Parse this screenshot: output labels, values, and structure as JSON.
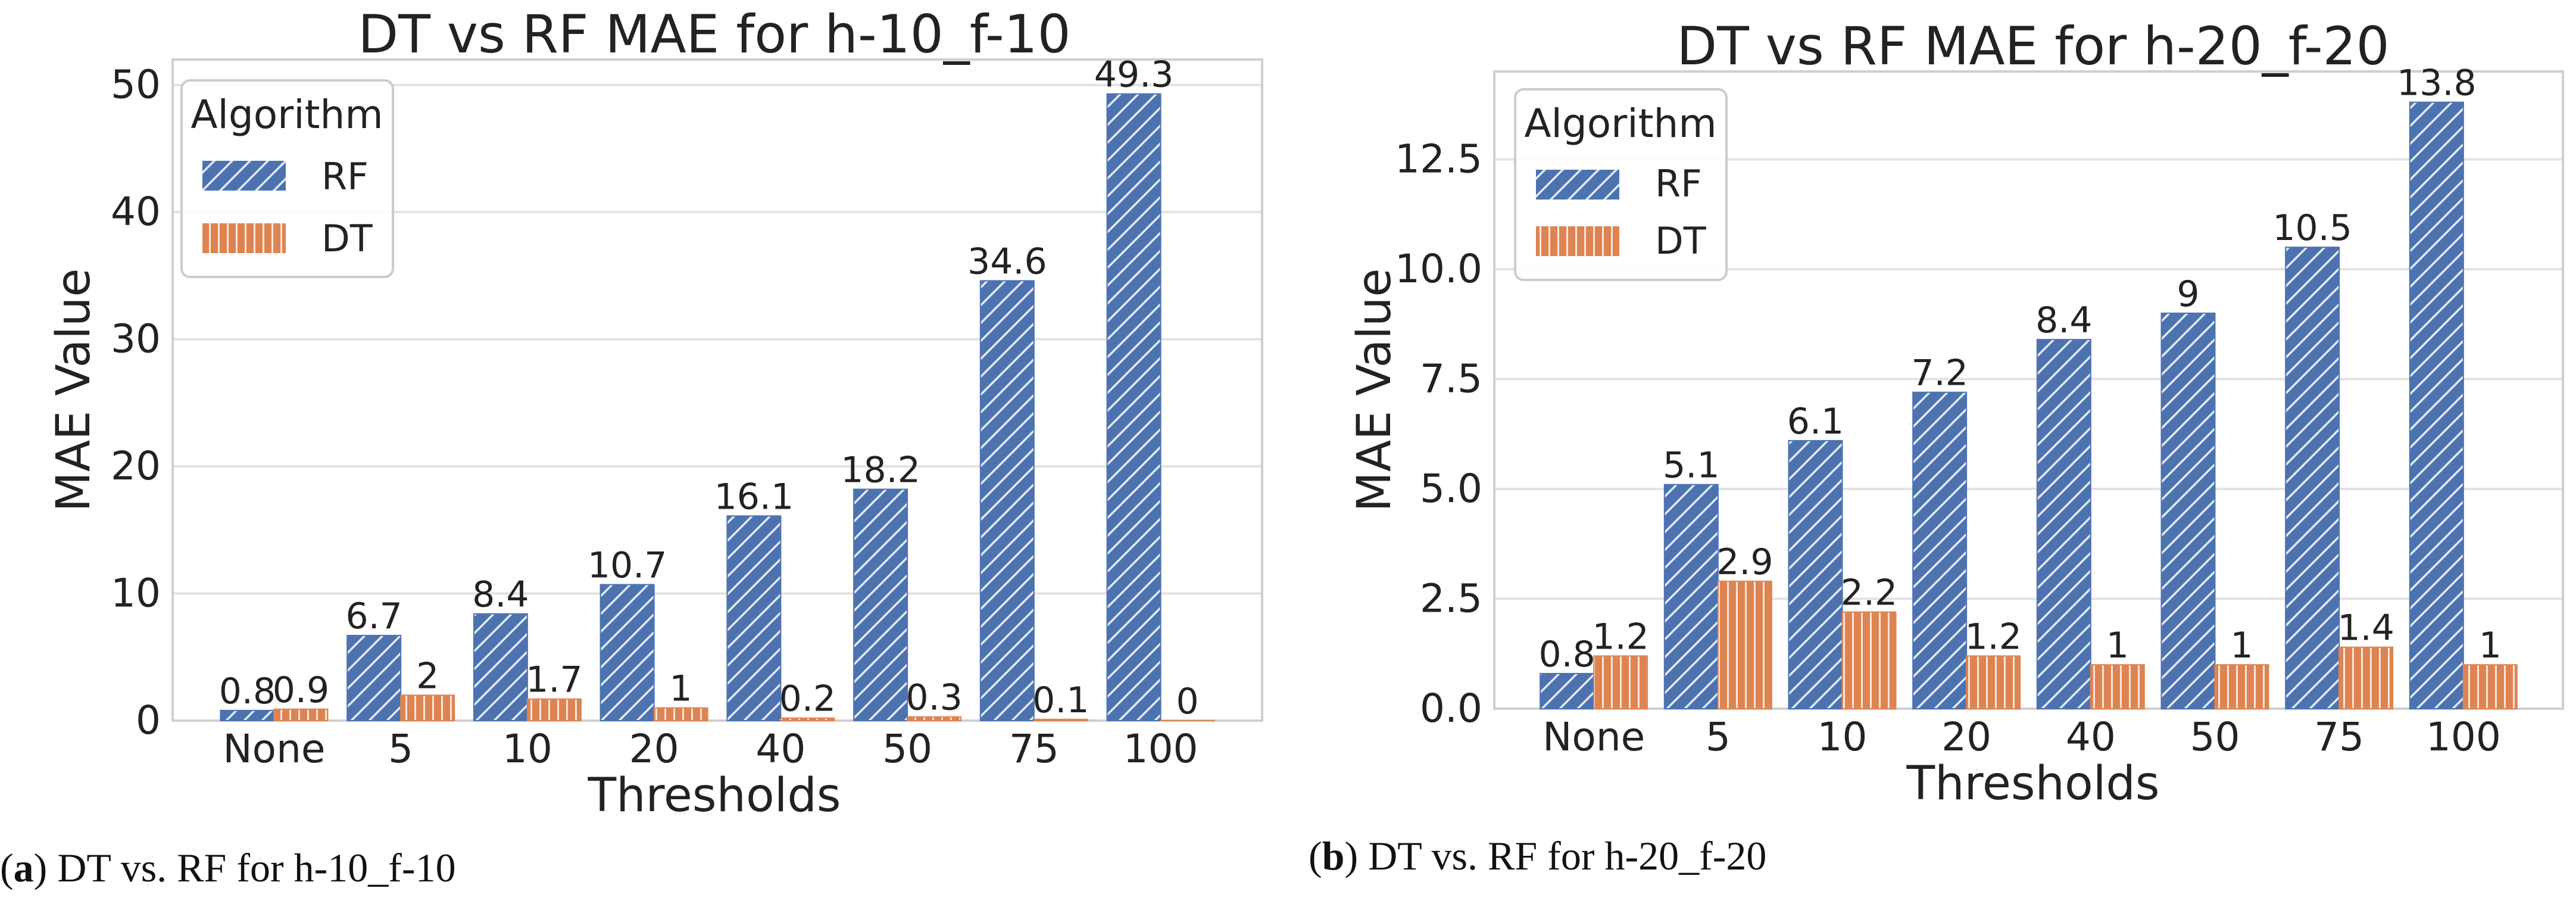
{
  "captions": [
    {
      "letter": "a",
      "text": ") DT vs. RF for h-10_f-10"
    },
    {
      "letter": "b",
      "text": ") DT vs. RF for h-20_f-20"
    }
  ],
  "colors": {
    "RF": "#4c72b0",
    "DT": "#dd8452",
    "grid": "#e2e2e2",
    "frame": "#cfcfcf"
  },
  "chart_data": [
    {
      "type": "bar",
      "title": "DT vs RF MAE for h-10_f-10",
      "xlabel": "Thresholds",
      "ylabel": "MAE Value",
      "categories": [
        "None",
        "5",
        "10",
        "20",
        "40",
        "50",
        "75",
        "100"
      ],
      "series": [
        {
          "name": "RF",
          "values": [
            0.8,
            6.7,
            8.4,
            10.7,
            16.1,
            18.2,
            34.6,
            49.3
          ],
          "labels": [
            "0.8",
            "6.7",
            "8.4",
            "10.7",
            "16.1",
            "18.2",
            "34.6",
            "49.3"
          ]
        },
        {
          "name": "DT",
          "values": [
            0.9,
            2,
            1.7,
            1,
            0.2,
            0.3,
            0.1,
            0
          ],
          "labels": [
            "0.9",
            "2",
            "1.7",
            "1",
            "0.2",
            "0.3",
            "0.1",
            "0"
          ]
        }
      ],
      "ylim": [
        0,
        52
      ],
      "yticks": [
        0,
        10,
        20,
        30,
        40,
        50
      ],
      "ytick_labels": [
        "0",
        "10",
        "20",
        "30",
        "40",
        "50"
      ],
      "legend": {
        "title": "Algorithm",
        "position": "upper-left",
        "entries": [
          "RF",
          "DT"
        ]
      },
      "grid": true
    },
    {
      "type": "bar",
      "title": "DT vs RF MAE for h-20_f-20",
      "xlabel": "Thresholds",
      "ylabel": "MAE Value",
      "categories": [
        "None",
        "5",
        "10",
        "20",
        "40",
        "50",
        "75",
        "100"
      ],
      "series": [
        {
          "name": "RF",
          "values": [
            0.8,
            5.1,
            6.1,
            7.2,
            8.4,
            9,
            10.5,
            13.8
          ],
          "labels": [
            "0.8",
            "5.1",
            "6.1",
            "7.2",
            "8.4",
            "9",
            "10.5",
            "13.8"
          ]
        },
        {
          "name": "DT",
          "values": [
            1.2,
            2.9,
            2.2,
            1.2,
            1,
            1,
            1.4,
            1
          ],
          "labels": [
            "1.2",
            "2.9",
            "2.2",
            "1.2",
            "1",
            "1",
            "1.4",
            "1"
          ]
        }
      ],
      "ylim": [
        0,
        14.5
      ],
      "yticks": [
        0,
        2.5,
        5,
        7.5,
        10,
        12.5
      ],
      "ytick_labels": [
        "0.0",
        "2.5",
        "5.0",
        "7.5",
        "10.0",
        "12.5"
      ],
      "legend": {
        "title": "Algorithm",
        "position": "upper-left",
        "entries": [
          "RF",
          "DT"
        ]
      },
      "grid": true
    }
  ]
}
